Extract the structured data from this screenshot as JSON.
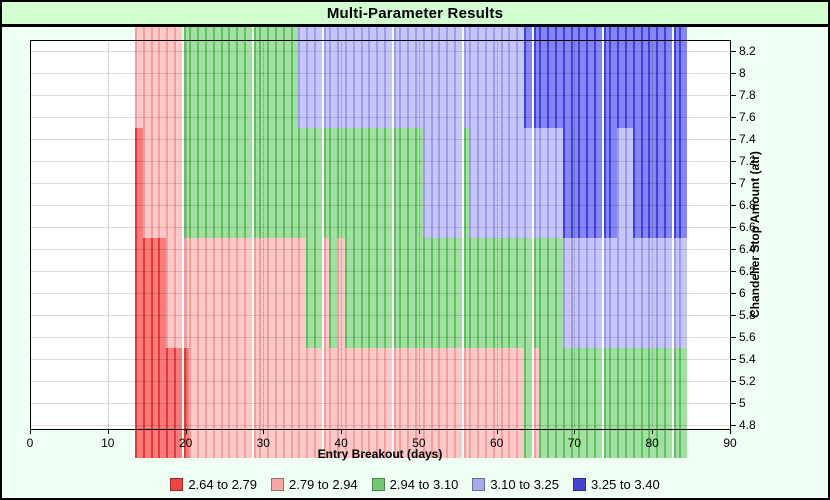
{
  "window": {
    "title": "Multi-Parameter Results"
  },
  "colors": {
    "page_bg": "#f0fff4",
    "titlebar_bg": "#d2fed2",
    "plot_bg": "#ffffff",
    "frame": "#000000"
  },
  "chart_data": {
    "type": "heatmap",
    "title": "Multi-Parameter Results",
    "xlabel": "Entry Breakout (days)",
    "ylabel": "Chandelier Stop Amount (atr)",
    "xlim": [
      0,
      90
    ],
    "ylim": [
      4.76,
      8.3
    ],
    "x_ticks": [
      0,
      10,
      20,
      30,
      40,
      50,
      60,
      70,
      80,
      90
    ],
    "y_ticks": [
      4.8,
      5,
      5.2,
      5.4,
      5.6,
      5.8,
      6,
      6.2,
      6.4,
      6.6,
      6.8,
      7,
      7.2,
      7.4,
      7.6,
      7.8,
      8,
      8.2
    ],
    "y_tick_labels": [
      "4.8",
      "5",
      "5.2",
      "5.4",
      "5.6",
      "5.8",
      "6",
      "6.2",
      "6.4",
      "6.6",
      "6.8",
      "7",
      "7.2",
      "7.4",
      "7.6",
      "7.8",
      "8",
      "8.2"
    ],
    "grid": true,
    "legend_position": "bottom",
    "categories": [
      {
        "id": "c1",
        "label": "2.64 to 2.79",
        "legend_color": "#ee4444",
        "body_color": "#f97a7a",
        "edge_color": "#e53939"
      },
      {
        "id": "c2",
        "label": "2.79 to 2.94",
        "legend_color": "#f7a6a6",
        "body_color": "#fcc9c9",
        "edge_color": "#f79d9d"
      },
      {
        "id": "c3",
        "label": "2.94 to 3.10",
        "legend_color": "#74c874",
        "body_color": "#a3dfa3",
        "edge_color": "#5fc25f"
      },
      {
        "id": "c4",
        "label": "3.10 to 3.25",
        "legend_color": "#a8a8ec",
        "body_color": "#c6c6f8",
        "edge_color": "#9d9df0"
      },
      {
        "id": "c5",
        "label": "3.25 to 3.40",
        "legend_color": "#4444cc",
        "body_color": "#8585f3",
        "edge_color": "#4040dd"
      }
    ],
    "day_range": [
      14,
      84
    ],
    "group_separators_after_days": [
      19,
      28,
      37,
      46,
      55,
      64,
      73,
      82
    ],
    "rows": [
      {
        "atr_min": 7.5,
        "atr_max": 8.5,
        "segments": [
          {
            "days": [
              14,
              19
            ],
            "cat": "c2"
          },
          {
            "days": [
              20,
              34
            ],
            "cat": "c3"
          },
          {
            "days": [
              35,
              63
            ],
            "cat": "c4"
          },
          {
            "days": [
              64,
              84
            ],
            "cat": "c5"
          }
        ]
      },
      {
        "atr_min": 6.5,
        "atr_max": 7.5,
        "segments": [
          {
            "days": [
              14,
              14
            ],
            "cat": "c1"
          },
          {
            "days": [
              15,
              19
            ],
            "cat": "c2"
          },
          {
            "days": [
              20,
              50
            ],
            "cat": "c3"
          },
          {
            "days": [
              51,
              55
            ],
            "cat": "c4"
          },
          {
            "days": [
              56,
              56
            ],
            "cat": "c3"
          },
          {
            "days": [
              57,
              68
            ],
            "cat": "c4"
          },
          {
            "days": [
              69,
              75
            ],
            "cat": "c5"
          },
          {
            "days": [
              76,
              77
            ],
            "cat": "c4"
          },
          {
            "days": [
              78,
              84
            ],
            "cat": "c5"
          }
        ]
      },
      {
        "atr_min": 5.5,
        "atr_max": 6.5,
        "segments": [
          {
            "days": [
              14,
              17
            ],
            "cat": "c1"
          },
          {
            "days": [
              18,
              35
            ],
            "cat": "c2"
          },
          {
            "days": [
              36,
              37
            ],
            "cat": "c3"
          },
          {
            "days": [
              38,
              38
            ],
            "cat": "c2"
          },
          {
            "days": [
              39,
              39
            ],
            "cat": "c3"
          },
          {
            "days": [
              40,
              40
            ],
            "cat": "c2"
          },
          {
            "days": [
              41,
              68
            ],
            "cat": "c3"
          },
          {
            "days": [
              69,
              84
            ],
            "cat": "c4"
          }
        ]
      },
      {
        "atr_min": 4.5,
        "atr_max": 5.5,
        "segments": [
          {
            "days": [
              14,
              20
            ],
            "cat": "c1"
          },
          {
            "days": [
              21,
              63
            ],
            "cat": "c2"
          },
          {
            "days": [
              64,
              64
            ],
            "cat": "c3"
          },
          {
            "days": [
              65,
              65
            ],
            "cat": "c2"
          },
          {
            "days": [
              66,
              84
            ],
            "cat": "c3"
          }
        ]
      }
    ]
  }
}
